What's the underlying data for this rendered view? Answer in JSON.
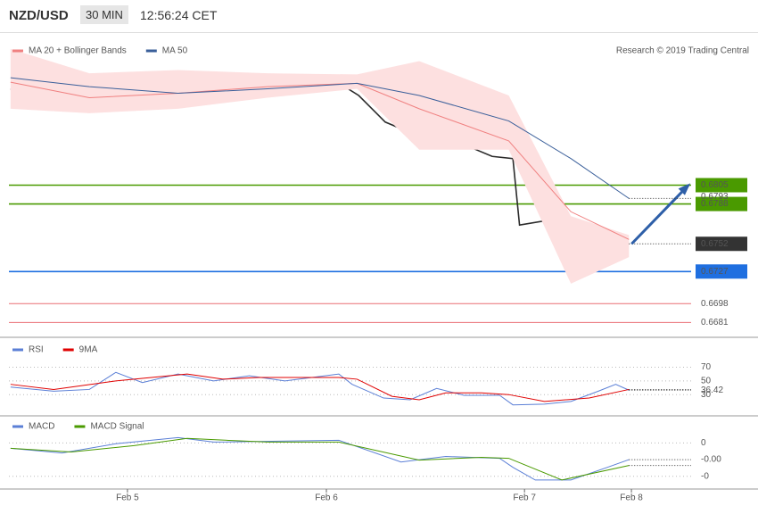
{
  "header": {
    "symbol": "NZD/USD",
    "interval": "30 MIN",
    "time": "12:56:24 CET"
  },
  "credit": "Research © 2019 Trading Central",
  "chart_data": [
    {
      "type": "line",
      "xlim": [
        -14.3,
        68
      ],
      "ylim": [
        0.667,
        0.694
      ],
      "series": [
        {
          "color": "#2b2b2b",
          "x": [
            -14.1,
            -10.9,
            -7.6,
            -4.4,
            -1.2,
            2.0,
            5.3,
            8.5,
            11.7,
            15.0,
            18.2,
            21.4,
            24.7,
            27.9,
            31.1,
            34.3,
            37.6,
            40.8,
            44.0,
            46.5,
            47.3,
            50.5,
            53.7,
            56.9,
            60.5
          ],
          "values": [
            0.6892,
            0.6886,
            0.6878,
            0.6882,
            0.689,
            0.6879,
            0.69,
            0.6898,
            0.6894,
            0.6901,
            0.6896,
            0.6896,
            0.6901,
            0.6886,
            0.6862,
            0.6852,
            0.6855,
            0.6841,
            0.6831,
            0.6829,
            0.6769,
            0.6773,
            0.6747,
            0.675,
            0.6752
          ]
        },
        {
          "name": "MA 20 + Bollinger Bands",
          "color": "#f08080",
          "band_color": "#fde0e0",
          "x": [
            -14.1,
            -4.6,
            6.1,
            16.9,
            27.7,
            35.2,
            46.0,
            53.5,
            60.5
          ],
          "values": [
            0.6898,
            0.6884,
            0.6888,
            0.6894,
            0.6897,
            0.6874,
            0.6845,
            0.6781,
            0.6756
          ],
          "upper": [
            0.6928,
            0.6906,
            0.6909,
            0.6906,
            0.6905,
            0.6917,
            0.6886,
            0.6777,
            0.676
          ],
          "lower": [
            0.6874,
            0.687,
            0.6874,
            0.6884,
            0.6892,
            0.6837,
            0.6837,
            0.6716,
            0.674
          ]
        },
        {
          "name": "MA 50",
          "color": "#3a5f9a",
          "x": [
            -14.1,
            -4.6,
            6.1,
            16.9,
            27.7,
            35.2,
            46.0,
            53.5,
            60.5
          ],
          "values": [
            0.6902,
            0.6894,
            0.6888,
            0.6892,
            0.6897,
            0.6886,
            0.6863,
            0.6829,
            0.6793
          ]
        }
      ],
      "levels": [
        {
          "value": 0.6805,
          "color": "#4a9a00",
          "style": "filled"
        },
        {
          "value": 0.6788,
          "color": "#4a9a00",
          "style": "filled"
        },
        {
          "value": 0.6727,
          "color": "#1f6fe0",
          "style": "filled"
        },
        {
          "value": 0.6698,
          "color": "#e0303a",
          "style": "outline"
        },
        {
          "value": 0.6681,
          "color": "#e0303a",
          "style": "outline"
        }
      ]
    },
    {
      "type": "line",
      "xlim": [
        -14.3,
        68
      ],
      "ylim": [
        12,
        85
      ],
      "yticks": [
        70,
        50,
        30
      ],
      "series": [
        {
          "name": "RSI",
          "color": "#5b7fd6",
          "x": [
            -14.1,
            -8.9,
            -4.6,
            -1.4,
            1.8,
            6.1,
            10.4,
            14.7,
            19.0,
            25.5,
            27.1,
            30.9,
            34.1,
            37.3,
            40.6,
            44.9,
            46.5,
            50.3,
            53.5,
            56.8,
            58.9,
            60.5
          ],
          "values": [
            41,
            35,
            37.5,
            62.5,
            47.5,
            60,
            50,
            57.5,
            50,
            60,
            45,
            25,
            22.5,
            39,
            29,
            29,
            15,
            16,
            20,
            35,
            45,
            36.42
          ]
        },
        {
          "name": "9MA",
          "color": "#e00000",
          "x": [
            -14.1,
            -8.9,
            -1.4,
            7.2,
            11.5,
            15.8,
            25.5,
            27.7,
            31.9,
            35.2,
            38.4,
            42.7,
            46.0,
            50.3,
            55.7,
            60.5
          ],
          "values": [
            45,
            37.5,
            50,
            60,
            52.5,
            55,
            55,
            52.5,
            27.5,
            22.5,
            32.5,
            32.5,
            30,
            20,
            25,
            37.5
          ]
        }
      ]
    },
    {
      "type": "line",
      "xlim": [
        -14.3,
        68
      ],
      "ylim": [
        -0.0026,
        0.0005
      ],
      "yticks": [
        0,
        {
          "value": -0.002,
          "label": "-0"
        }
      ],
      "xticks": [
        {
          "value": 0,
          "label": "Feb 5"
        },
        {
          "value": 24,
          "label": "Feb 6"
        },
        {
          "value": 47.9,
          "label": "Feb 7"
        },
        {
          "value": 60.8,
          "label": "Feb 8"
        }
      ],
      "series": [
        {
          "name": "MACD",
          "color": "#5b7fd6",
          "x": [
            -14.1,
            -7.9,
            -1.4,
            6.1,
            10.4,
            25.5,
            33.0,
            38.4,
            44.9,
            46.5,
            49.2,
            53.5,
            57.9,
            60.5
          ],
          "values": [
            -0.00032,
            -0.0006,
            -5e-05,
            0.00032,
            5e-05,
            0.00016,
            -0.00114,
            -0.00081,
            -0.00092,
            -0.00146,
            -0.00222,
            -0.00222,
            -0.00146,
            -0.001
          ],
          "value_labels": [
            null,
            null,
            null,
            null,
            null,
            null,
            null,
            null,
            null,
            null,
            null,
            null,
            null,
            "-0.00"
          ]
        },
        {
          "name": "MACD Signal",
          "color": "#4a9a00",
          "x": [
            -14.1,
            -6.8,
            0.8,
            7.2,
            16.9,
            25.5,
            35.2,
            42.7,
            46.0,
            52.4,
            60.5
          ],
          "values": [
            -0.00032,
            -0.00054,
            -0.00016,
            0.00027,
            5e-05,
            5e-05,
            -0.00103,
            -0.00086,
            -0.00092,
            -0.00222,
            -0.00135
          ]
        }
      ]
    }
  ]
}
